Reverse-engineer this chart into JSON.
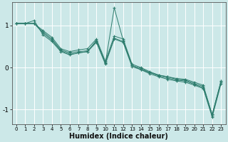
{
  "xlabel": "Humidex (Indice chaleur)",
  "ylabel": "",
  "xlim": [
    -0.5,
    23.5
  ],
  "ylim": [
    -1.35,
    1.55
  ],
  "yticks": [
    -1,
    0,
    1
  ],
  "xticks": [
    0,
    1,
    2,
    3,
    4,
    5,
    6,
    7,
    8,
    9,
    10,
    11,
    12,
    13,
    14,
    15,
    16,
    17,
    18,
    19,
    20,
    21,
    22,
    23
  ],
  "bg_color": "#cce8e8",
  "grid_color": "#ffffff",
  "line_color": "#2e7d6e",
  "line1_x": [
    0,
    1,
    2,
    3,
    4,
    5,
    6,
    7,
    8,
    9,
    10,
    11,
    12,
    13,
    14,
    15,
    16,
    17,
    18,
    19,
    20,
    21,
    22,
    23
  ],
  "line1_y": [
    1.05,
    1.05,
    1.12,
    0.78,
    0.62,
    0.38,
    0.3,
    0.35,
    0.38,
    0.65,
    0.1,
    1.42,
    0.65,
    0.05,
    -0.05,
    -0.12,
    -0.18,
    -0.22,
    -0.26,
    -0.28,
    -0.35,
    -0.42,
    -1.12,
    -0.32
  ],
  "line2_x": [
    0,
    1,
    2,
    3,
    4,
    5,
    6,
    7,
    8,
    9,
    10,
    11,
    12,
    13,
    14,
    15,
    16,
    17,
    18,
    19,
    20,
    21,
    22,
    23
  ],
  "line2_y": [
    1.05,
    1.05,
    1.05,
    0.88,
    0.72,
    0.45,
    0.38,
    0.42,
    0.45,
    0.68,
    0.15,
    0.75,
    0.68,
    0.08,
    0.0,
    -0.1,
    -0.18,
    -0.22,
    -0.28,
    -0.3,
    -0.38,
    -0.45,
    -1.12,
    -0.32
  ],
  "line3_x": [
    0,
    1,
    2,
    3,
    4,
    5,
    6,
    7,
    8,
    9,
    10,
    11,
    12,
    13,
    14,
    15,
    16,
    17,
    18,
    19,
    20,
    21,
    22,
    23
  ],
  "line3_y": [
    1.05,
    1.05,
    1.05,
    0.85,
    0.68,
    0.42,
    0.35,
    0.38,
    0.4,
    0.62,
    0.12,
    0.7,
    0.62,
    0.05,
    -0.02,
    -0.12,
    -0.2,
    -0.25,
    -0.3,
    -0.32,
    -0.4,
    -0.48,
    -1.15,
    -0.35
  ],
  "line4_x": [
    0,
    1,
    2,
    3,
    4,
    5,
    6,
    7,
    8,
    9,
    10,
    11,
    12,
    13,
    14,
    15,
    16,
    17,
    18,
    19,
    20,
    21,
    22,
    23
  ],
  "line4_y": [
    1.05,
    1.05,
    1.05,
    0.82,
    0.65,
    0.4,
    0.32,
    0.35,
    0.38,
    0.6,
    0.08,
    0.68,
    0.6,
    0.02,
    -0.05,
    -0.15,
    -0.22,
    -0.28,
    -0.32,
    -0.35,
    -0.42,
    -0.5,
    -1.18,
    -0.38
  ]
}
